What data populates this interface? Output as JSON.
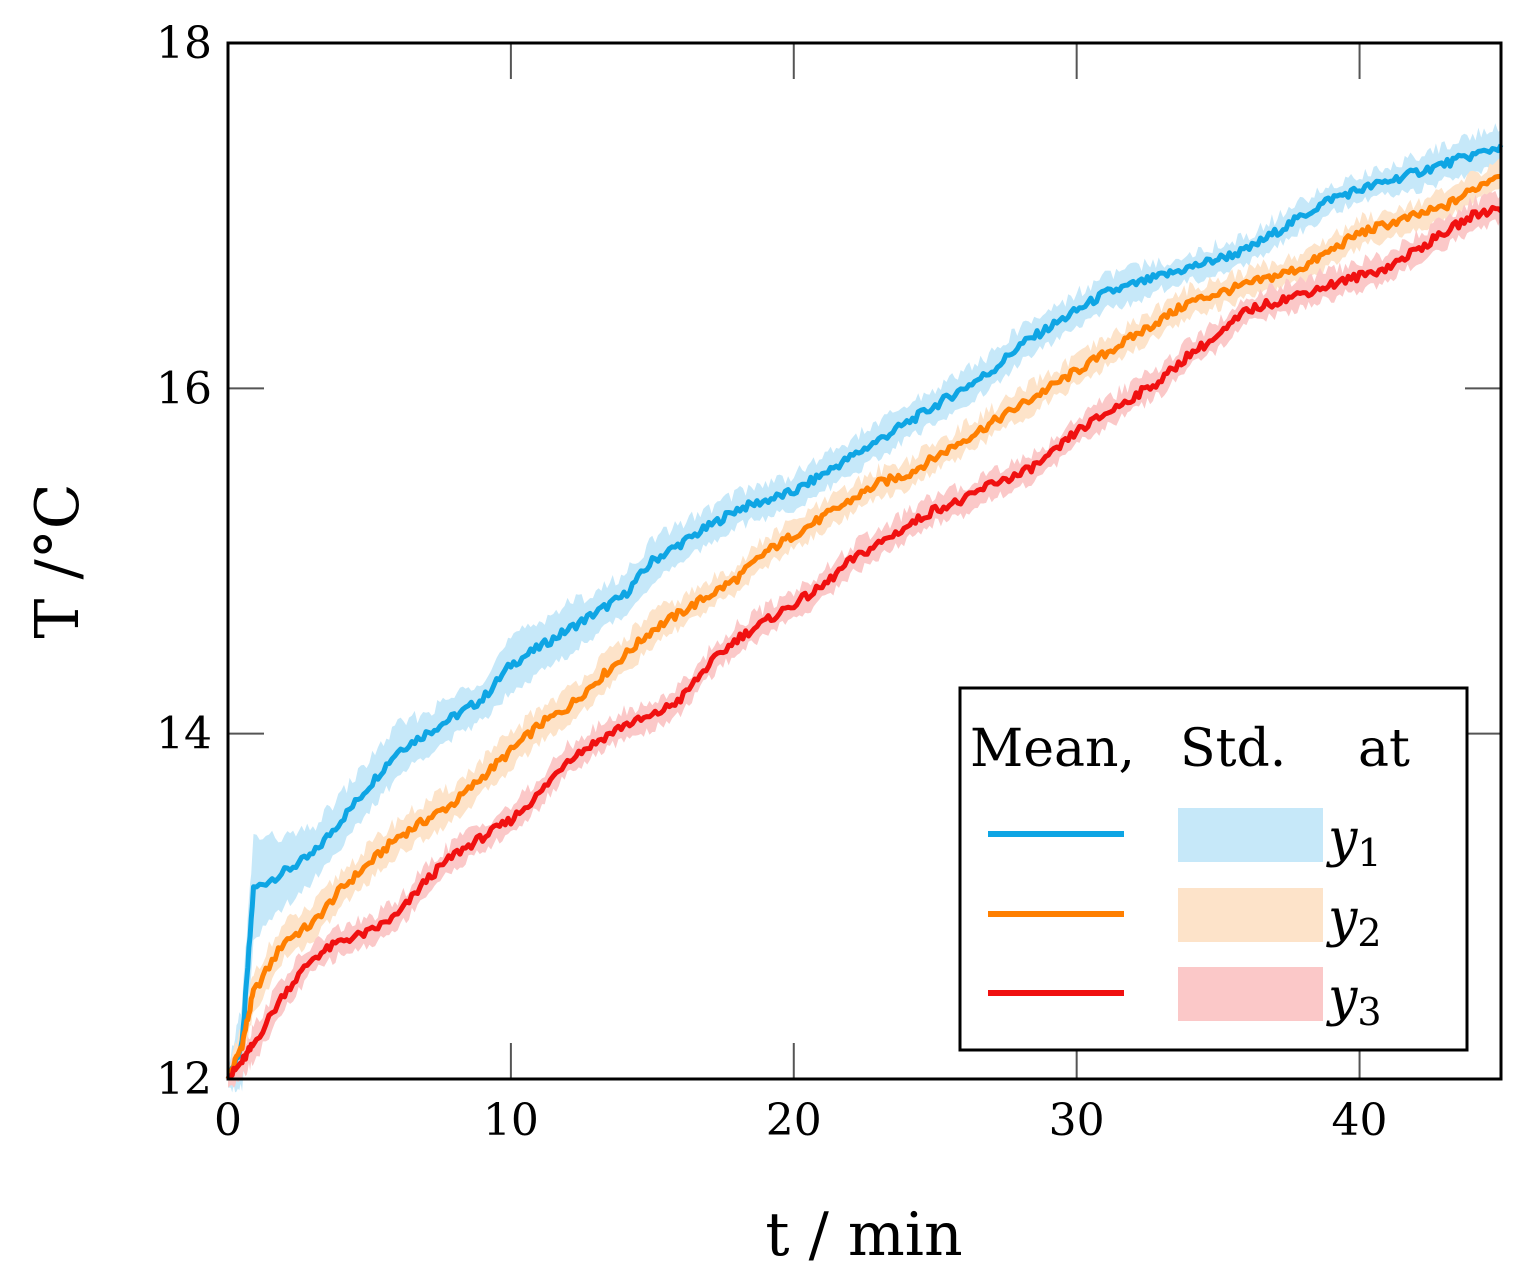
{
  "chart_data": {
    "type": "line",
    "xlabel": "t / min",
    "ylabel": "T /°C",
    "xlim": [
      0,
      45
    ],
    "ylim": [
      12,
      18
    ],
    "xticks": [
      0,
      10,
      20,
      30,
      40
    ],
    "yticks": [
      12,
      14,
      16,
      18
    ],
    "grid": false,
    "legend_position": "bottom-right",
    "legend": {
      "header_mean": "Mean,",
      "header_std": "Std.",
      "header_at": "at",
      "entries": [
        {
          "base": "y",
          "sub": "1"
        },
        {
          "base": "y",
          "sub": "2"
        },
        {
          "base": "y",
          "sub": "3"
        }
      ]
    },
    "x": [
      0,
      0.5,
      0.9,
      2,
      3,
      4,
      5,
      6,
      7,
      8,
      9,
      10,
      11,
      12,
      13,
      14,
      15,
      16,
      17,
      18,
      19,
      20,
      21,
      22,
      23,
      24,
      25,
      26,
      27,
      28,
      29,
      30,
      31,
      32,
      33,
      34,
      35,
      36,
      37,
      38,
      39,
      40,
      41,
      42,
      43,
      44,
      45
    ],
    "series": [
      {
        "color": "#0ea5e4",
        "band_color": "#c6e8f9",
        "mean": [
          12.0,
          12.2,
          13.1,
          13.2,
          13.3,
          13.5,
          13.7,
          13.9,
          14.0,
          14.1,
          14.2,
          14.4,
          14.5,
          14.6,
          14.7,
          14.8,
          15.0,
          15.1,
          15.2,
          15.3,
          15.35,
          15.4,
          15.5,
          15.6,
          15.7,
          15.8,
          15.9,
          16.0,
          16.1,
          16.25,
          16.35,
          16.45,
          16.55,
          16.6,
          16.65,
          16.7,
          16.75,
          16.8,
          16.9,
          17.0,
          17.1,
          17.15,
          17.2,
          17.25,
          17.3,
          17.35,
          17.4
        ],
        "std": [
          0.05,
          0.25,
          0.3,
          0.2,
          0.15,
          0.15,
          0.15,
          0.15,
          0.12,
          0.12,
          0.12,
          0.15,
          0.15,
          0.15,
          0.12,
          0.12,
          0.12,
          0.12,
          0.1,
          0.1,
          0.1,
          0.1,
          0.1,
          0.1,
          0.1,
          0.1,
          0.1,
          0.1,
          0.1,
          0.1,
          0.1,
          0.1,
          0.1,
          0.1,
          0.08,
          0.08,
          0.08,
          0.08,
          0.08,
          0.08,
          0.08,
          0.08,
          0.08,
          0.1,
          0.1,
          0.12,
          0.12
        ]
      },
      {
        "color": "#ff7f00",
        "band_color": "#fde3c9",
        "mean": [
          12.0,
          12.2,
          12.5,
          12.8,
          12.9,
          13.1,
          13.25,
          13.4,
          13.5,
          13.6,
          13.75,
          13.9,
          14.05,
          14.15,
          14.3,
          14.45,
          14.6,
          14.7,
          14.8,
          14.9,
          15.05,
          15.15,
          15.25,
          15.35,
          15.45,
          15.5,
          15.6,
          15.7,
          15.8,
          15.9,
          16.0,
          16.1,
          16.2,
          16.3,
          16.4,
          16.5,
          16.55,
          16.6,
          16.65,
          16.7,
          16.8,
          16.9,
          16.95,
          17.0,
          17.05,
          17.15,
          17.25
        ],
        "std": [
          0.05,
          0.1,
          0.12,
          0.1,
          0.1,
          0.1,
          0.1,
          0.1,
          0.1,
          0.1,
          0.1,
          0.1,
          0.1,
          0.1,
          0.1,
          0.1,
          0.1,
          0.08,
          0.08,
          0.08,
          0.08,
          0.08,
          0.08,
          0.08,
          0.08,
          0.08,
          0.08,
          0.08,
          0.08,
          0.08,
          0.08,
          0.08,
          0.08,
          0.08,
          0.08,
          0.08,
          0.08,
          0.08,
          0.08,
          0.08,
          0.08,
          0.08,
          0.08,
          0.08,
          0.08,
          0.08,
          0.08
        ]
      },
      {
        "color": "#f01010",
        "band_color": "#fbc8c8",
        "mean": [
          12.0,
          12.1,
          12.2,
          12.5,
          12.7,
          12.8,
          12.85,
          12.95,
          13.15,
          13.3,
          13.4,
          13.5,
          13.65,
          13.85,
          13.95,
          14.05,
          14.1,
          14.2,
          14.4,
          14.55,
          14.65,
          14.75,
          14.85,
          15.0,
          15.1,
          15.2,
          15.3,
          15.35,
          15.45,
          15.5,
          15.6,
          15.75,
          15.85,
          15.95,
          16.05,
          16.2,
          16.3,
          16.45,
          16.5,
          16.55,
          16.6,
          16.65,
          16.7,
          16.8,
          16.9,
          17.0,
          17.05
        ],
        "std": [
          0.05,
          0.08,
          0.1,
          0.1,
          0.08,
          0.08,
          0.08,
          0.08,
          0.08,
          0.08,
          0.08,
          0.08,
          0.08,
          0.08,
          0.08,
          0.08,
          0.08,
          0.08,
          0.08,
          0.08,
          0.08,
          0.08,
          0.08,
          0.08,
          0.08,
          0.08,
          0.08,
          0.08,
          0.08,
          0.08,
          0.08,
          0.08,
          0.08,
          0.08,
          0.08,
          0.08,
          0.08,
          0.08,
          0.08,
          0.08,
          0.08,
          0.08,
          0.08,
          0.08,
          0.08,
          0.08,
          0.08
        ]
      }
    ]
  }
}
